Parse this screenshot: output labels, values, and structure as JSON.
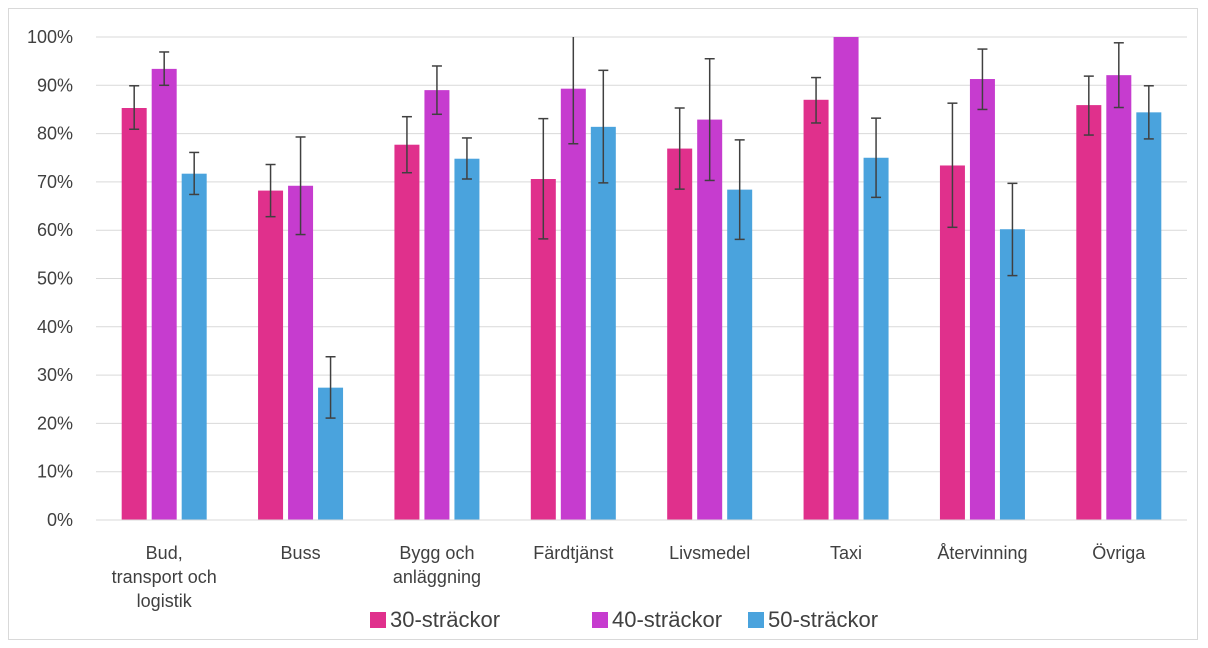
{
  "chart_data": {
    "type": "bar",
    "categories": [
      [
        "Bud,",
        "transport och",
        "logistik"
      ],
      [
        "Buss"
      ],
      [
        "Bygg och",
        "anläggning"
      ],
      [
        "Färdtjänst"
      ],
      [
        "Livsmedel"
      ],
      [
        "Taxi"
      ],
      [
        "Återvinning"
      ],
      [
        "Övriga"
      ]
    ],
    "series": [
      {
        "name": "30-sträckor",
        "color": "#e0308c",
        "values": [
          85.3,
          68.2,
          77.7,
          70.6,
          76.9,
          87.0,
          73.4,
          85.9
        ],
        "err_low": [
          80.9,
          62.8,
          71.9,
          58.2,
          68.5,
          82.2,
          60.6,
          79.7
        ],
        "err_high": [
          89.9,
          73.6,
          83.5,
          83.1,
          85.3,
          91.6,
          86.3,
          91.9
        ]
      },
      {
        "name": "40-sträckor",
        "color": "#c63ccf",
        "values": [
          93.4,
          69.2,
          89.0,
          89.3,
          82.9,
          100.0,
          91.3,
          92.1
        ],
        "err_low": [
          90.0,
          59.1,
          84.0,
          77.9,
          70.3,
          100.0,
          85.0,
          85.4
        ],
        "err_high": [
          96.9,
          79.3,
          94.0,
          100.8,
          95.5,
          100.0,
          97.5,
          98.8
        ]
      },
      {
        "name": "50-sträckor",
        "color": "#4aa3dd",
        "values": [
          71.7,
          27.4,
          74.8,
          81.4,
          68.4,
          75.0,
          60.2,
          84.4
        ],
        "err_low": [
          67.4,
          21.1,
          70.6,
          69.8,
          58.1,
          66.8,
          50.6,
          78.9
        ],
        "err_high": [
          76.1,
          33.8,
          79.1,
          93.1,
          78.7,
          83.2,
          69.7,
          89.9
        ]
      }
    ],
    "y_ticks": [
      "0%",
      "10%",
      "20%",
      "30%",
      "40%",
      "50%",
      "60%",
      "70%",
      "80%",
      "90%",
      "100%"
    ],
    "ylim": [
      0,
      100
    ],
    "grid": true,
    "legend_position": "bottom",
    "title": "",
    "xlabel": "",
    "ylabel": ""
  }
}
